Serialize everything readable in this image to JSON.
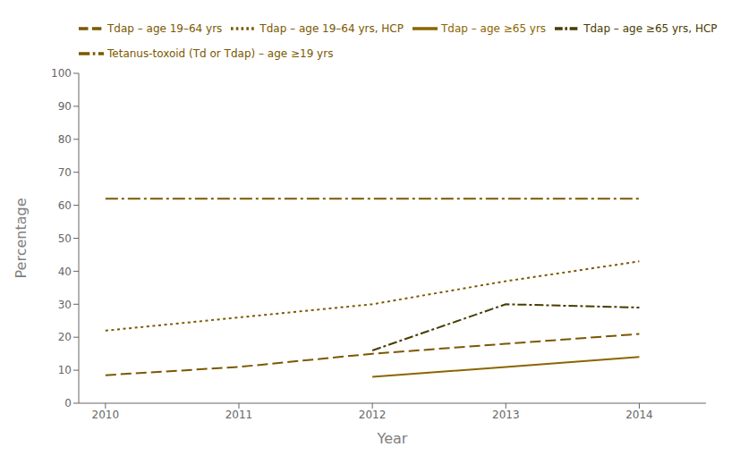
{
  "chart_data": {
    "type": "line",
    "x": [
      2010,
      2011,
      2012,
      2013,
      2014
    ],
    "series": [
      {
        "name": "Tetanus-toxoid (Td or Tdap) – age ≥19 yrs",
        "color": "#7B5800",
        "line_style": "dashdot",
        "values": [
          62,
          62,
          62,
          62,
          62
        ]
      },
      {
        "name": "Tdap – age ≥65 yrs",
        "color": "#8B6500",
        "line_style": "solid",
        "values": [
          null,
          null,
          8,
          11,
          14
        ]
      },
      {
        "name": "Tdap – age ≥65 yrs, HCP",
        "color": "#4A3B00",
        "line_style": "dashdot2",
        "values": [
          null,
          null,
          16,
          30,
          29
        ]
      },
      {
        "name": "Tdap – age 19–64 yrs",
        "color": "#7B5800",
        "line_style": "dashed",
        "values": [
          8.5,
          11,
          15,
          18,
          21
        ]
      },
      {
        "name": "Tdap – age 19–64 yrs, HCP",
        "color": "#7B5800",
        "line_style": "dotted",
        "values": [
          22,
          26,
          30,
          37,
          43
        ]
      }
    ],
    "xlabel": "Year",
    "ylabel": "Percentage",
    "xlim": [
      2009.8,
      2014.5
    ],
    "xticks": [
      2010,
      2011,
      2012,
      2013,
      2014
    ],
    "ylim": [
      0,
      100
    ],
    "yticks": [
      0,
      10,
      20,
      30,
      40,
      50,
      60,
      70,
      80,
      90,
      100
    ],
    "grid": false,
    "legend": "upper left"
  }
}
